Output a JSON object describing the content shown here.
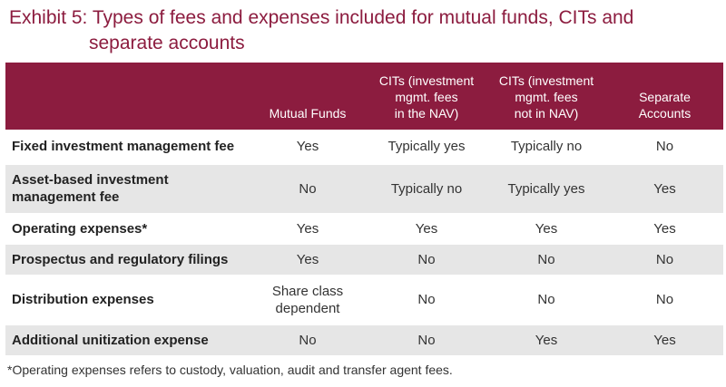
{
  "title": {
    "line1": "Exhibit 5: Types of fees and expenses included for mutual funds, CITs and",
    "line2": "separate accounts"
  },
  "columns": [
    "",
    "Mutual Funds",
    "CITs (investment mgmt. fees in the NAV)",
    "CITs (investment mgmt. fees not in NAV)",
    "Separate Accounts"
  ],
  "column_lines": {
    "mutual_funds": [
      "Mutual Funds"
    ],
    "cits_in_nav": [
      "CITs (investment",
      "mgmt. fees",
      "in the NAV)"
    ],
    "cits_not_in_nav": [
      "CITs (investment",
      "mgmt. fees",
      "not in NAV)"
    ],
    "separate_accounts": [
      "Separate",
      "Accounts"
    ]
  },
  "rows": [
    {
      "label": [
        "Fixed investment management fee"
      ],
      "mutual_funds": [
        "Yes"
      ],
      "cits_in_nav": "Typically yes",
      "cits_not_in_nav": "Typically no",
      "separate_accounts": "No"
    },
    {
      "label": [
        "Asset-based investment",
        "management fee"
      ],
      "mutual_funds": [
        "No"
      ],
      "cits_in_nav": "Typically no",
      "cits_not_in_nav": "Typically yes",
      "separate_accounts": "Yes"
    },
    {
      "label": [
        "Operating expenses*"
      ],
      "mutual_funds": [
        "Yes"
      ],
      "cits_in_nav": "Yes",
      "cits_not_in_nav": "Yes",
      "separate_accounts": "Yes"
    },
    {
      "label": [
        "Prospectus and regulatory filings"
      ],
      "mutual_funds": [
        "Yes"
      ],
      "cits_in_nav": "No",
      "cits_not_in_nav": "No",
      "separate_accounts": "No"
    },
    {
      "label": [
        "Distribution expenses"
      ],
      "mutual_funds": [
        "Share class",
        "dependent"
      ],
      "cits_in_nav": "No",
      "cits_not_in_nav": "No",
      "separate_accounts": "No"
    },
    {
      "label": [
        "Additional unitization expense"
      ],
      "mutual_funds": [
        "No"
      ],
      "cits_in_nav": "No",
      "cits_not_in_nav": "Yes",
      "separate_accounts": "Yes"
    }
  ],
  "footnote": "*Operating expenses refers to custody, valuation, audit and transfer agent fees.",
  "colors": {
    "accent": "#8c1c3f",
    "stripe": "#e6e6e6"
  }
}
